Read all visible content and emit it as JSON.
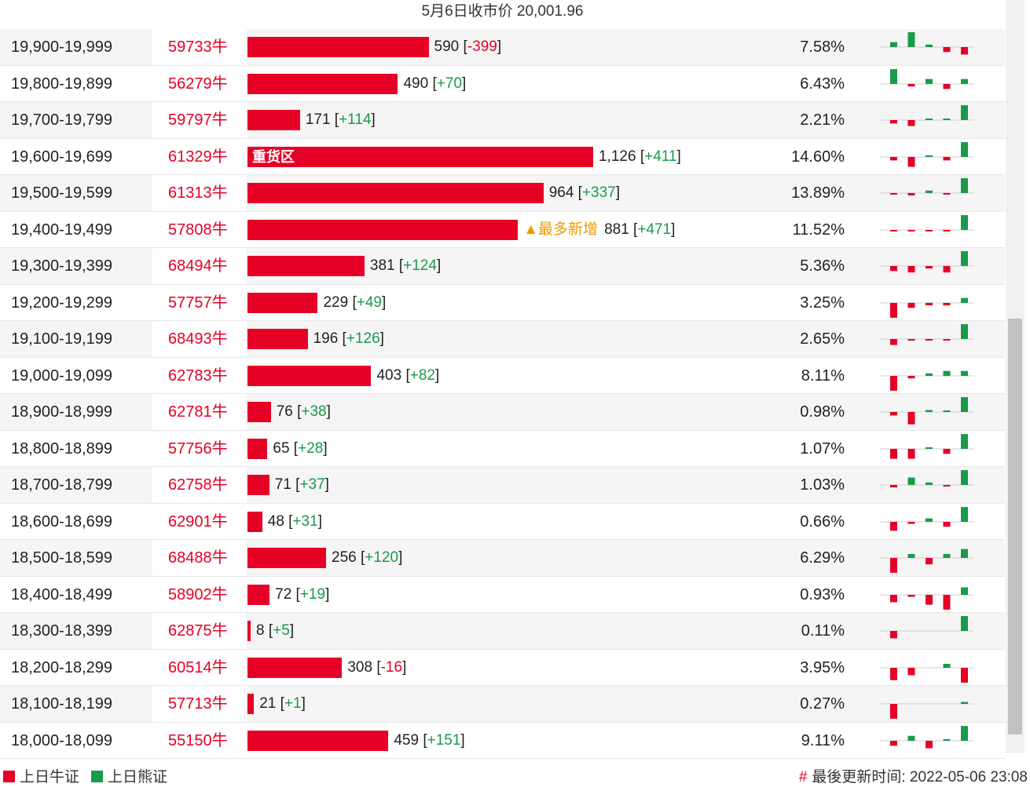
{
  "header": {
    "title": "5月6日收市价 20,001.96"
  },
  "colors": {
    "bull": "#e60026",
    "bear": "#1a9a4a"
  },
  "rows": [
    {
      "range": "19,900-19,999",
      "code": "59733牛",
      "value": "590",
      "change": "-399",
      "value_num": 590,
      "pct": "7.58%",
      "tag": "",
      "spark": [
        1,
        3,
        0.5,
        -1,
        -1.5
      ]
    },
    {
      "range": "19,800-19,899",
      "code": "56279牛",
      "value": "490",
      "change": "+70",
      "value_num": 490,
      "pct": "6.43%",
      "tag": "",
      "spark": [
        3,
        -0.5,
        1,
        -1,
        1
      ]
    },
    {
      "range": "19,700-19,799",
      "code": "59797牛",
      "value": "171",
      "change": "+114",
      "value_num": 171,
      "pct": "2.21%",
      "tag": "",
      "spark": [
        -0.7,
        -1.2,
        0.3,
        0.3,
        3
      ]
    },
    {
      "range": "19,600-19,699",
      "code": "61329牛",
      "value": "1,126",
      "change": "+411",
      "value_num": 1126,
      "pct": "14.60%",
      "tag": "",
      "bar_label": "重货区",
      "spark": [
        -0.7,
        -2,
        0.3,
        -0.7,
        3
      ]
    },
    {
      "range": "19,500-19,599",
      "code": "61313牛",
      "value": "964",
      "change": "+337",
      "value_num": 964,
      "pct": "13.89%",
      "tag": "",
      "spark": [
        -0.3,
        -0.5,
        0.5,
        -0.3,
        3
      ]
    },
    {
      "range": "19,400-19,499",
      "code": "57808牛",
      "value": "881",
      "change": "+471",
      "value_num": 881,
      "pct": "11.52%",
      "tag": "▲最多新增",
      "spark": [
        -0.3,
        -0.3,
        -0.3,
        -0.3,
        3
      ]
    },
    {
      "range": "19,300-19,399",
      "code": "68494牛",
      "value": "381",
      "change": "+124",
      "value_num": 381,
      "pct": "5.36%",
      "tag": "",
      "spark": [
        -1,
        -1.3,
        -0.5,
        -1.3,
        3
      ]
    },
    {
      "range": "19,200-19,299",
      "code": "57757牛",
      "value": "229",
      "change": "+49",
      "value_num": 229,
      "pct": "3.25%",
      "tag": "",
      "spark": [
        -3,
        -1,
        -0.5,
        -0.5,
        1
      ]
    },
    {
      "range": "19,100-19,199",
      "code": "68493牛",
      "value": "196",
      "change": "+126",
      "value_num": 196,
      "pct": "2.65%",
      "tag": "",
      "spark": [
        -1.2,
        -0.3,
        -0.3,
        -0.3,
        3
      ]
    },
    {
      "range": "19,000-19,099",
      "code": "62783牛",
      "value": "403",
      "change": "+82",
      "value_num": 403,
      "pct": "8.11%",
      "tag": "",
      "spark": [
        -3,
        -0.5,
        0.5,
        1,
        1
      ]
    },
    {
      "range": "18,900-18,999",
      "code": "62781牛",
      "value": "76",
      "change": "+38",
      "value_num": 76,
      "pct": "0.98%",
      "tag": "",
      "spark": [
        -0.7,
        -2.5,
        0.4,
        0.2,
        3
      ]
    },
    {
      "range": "18,800-18,899",
      "code": "57756牛",
      "value": "65",
      "change": "+28",
      "value_num": 65,
      "pct": "1.07%",
      "tag": "",
      "spark": [
        -2,
        -2,
        0.3,
        -1,
        3
      ]
    },
    {
      "range": "18,700-18,799",
      "code": "62758牛",
      "value": "71",
      "change": "+37",
      "value_num": 71,
      "pct": "1.03%",
      "tag": "",
      "spark": [
        -0.5,
        1.5,
        0.5,
        -0.3,
        3
      ]
    },
    {
      "range": "18,600-18,699",
      "code": "62901牛",
      "value": "48",
      "change": "+31",
      "value_num": 48,
      "pct": "0.66%",
      "tag": "",
      "spark": [
        -1.8,
        -0.4,
        0.7,
        -1,
        3
      ]
    },
    {
      "range": "18,500-18,599",
      "code": "68488牛",
      "value": "256",
      "change": "+120",
      "value_num": 256,
      "pct": "6.29%",
      "tag": "",
      "spark": [
        -3,
        0.8,
        -1.3,
        0.8,
        1.8
      ]
    },
    {
      "range": "18,400-18,499",
      "code": "58902牛",
      "value": "72",
      "change": "+19",
      "value_num": 72,
      "pct": "0.93%",
      "tag": "",
      "spark": [
        -1.5,
        -0.4,
        -2,
        -3,
        1.5
      ]
    },
    {
      "range": "18,300-18,399",
      "code": "62875牛",
      "value": "8",
      "change": "+5",
      "value_num": 8,
      "pct": "0.11%",
      "tag": "",
      "spark": [
        -1.5,
        0,
        0,
        0,
        3
      ]
    },
    {
      "range": "18,200-18,299",
      "code": "60514牛",
      "value": "308",
      "change": "-16",
      "value_num": 308,
      "pct": "3.95%",
      "tag": "",
      "spark": [
        -2.5,
        -1.5,
        0,
        0.8,
        -3
      ]
    },
    {
      "range": "18,100-18,199",
      "code": "57713牛",
      "value": "21",
      "change": "+1",
      "value_num": 21,
      "pct": "0.27%",
      "tag": "",
      "spark": [
        -3,
        0,
        0,
        0,
        0.4
      ]
    },
    {
      "range": "18,000-18,099",
      "code": "55150牛",
      "value": "459",
      "change": "+151",
      "value_num": 459,
      "pct": "9.11%",
      "tag": "",
      "spark": [
        -1,
        1,
        -1.5,
        0.2,
        3
      ]
    }
  ],
  "legend": {
    "bull_label": "上日牛证",
    "bear_label": "上日熊证"
  },
  "footer": {
    "hash": "#",
    "updated": "最後更新时间: 2022-05-06 23:08"
  }
}
